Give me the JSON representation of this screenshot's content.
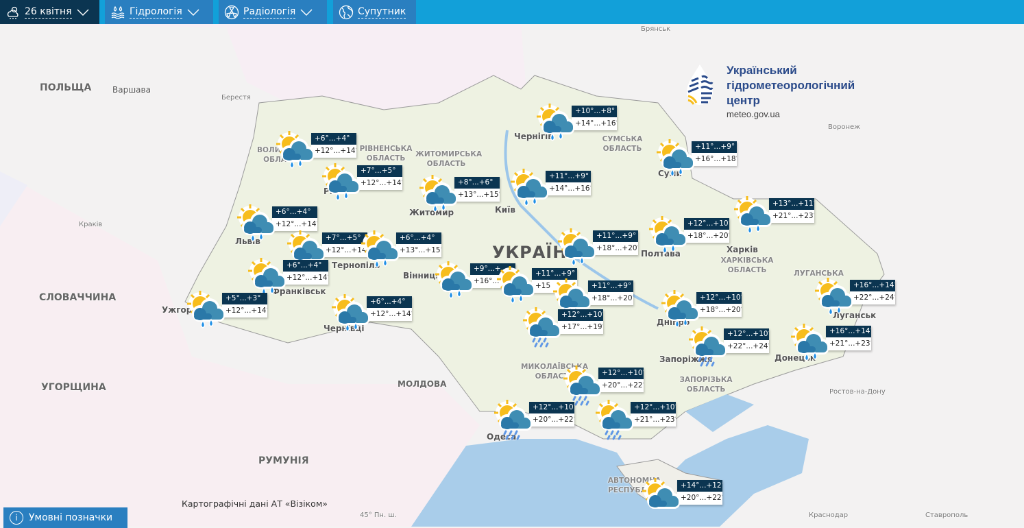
{
  "topbar": {
    "tabs": [
      {
        "label": "26 квітня",
        "icon": "weather-cloud-sun-icon",
        "dropdown": true,
        "active": true
      },
      {
        "label": "Гідрологія",
        "icon": "water-drops-icon",
        "dropdown": true
      },
      {
        "label": "Радіологія",
        "icon": "radiation-icon",
        "dropdown": true
      },
      {
        "label": "Супутник",
        "icon": "globe-icon",
        "dropdown": false
      }
    ]
  },
  "logo": {
    "line1": "Український",
    "line2": "гідрометеорологічний",
    "line3": "центр",
    "url": "meteo.gov.ua"
  },
  "colors": {
    "header": "#0b3551",
    "tab": "#2a7fc0",
    "bar": "#12a0d9",
    "sun": "#f7bd1d",
    "cloud": "#3a86ad",
    "rain": "#1e8fe6"
  },
  "labels": {
    "countries": [
      "ПОЛЬЩА",
      "СЛОВАЧЧИНА",
      "УГОРЩИНА",
      "РУМУНІЯ",
      "МОЛДОВА"
    ],
    "ukraine": "УКРАЇНА",
    "regions": [
      "СУМСЬКА ОБЛАСТЬ",
      "ХАРКІВСЬКА ОБЛАСТЬ",
      "МИКОЛАЇВСЬКА ОБЛАСТЬ",
      "ЗАПОРІЗЬКА ОБЛАСТЬ",
      "АВТОНОМНА РЕСПУБЛІКА",
      "ЛУГАНСЬКА",
      "ВОЛИНСЬКА ОБЛАСТЬ",
      "РІВНЕНСЬКА ОБЛАСТЬ",
      "ЖИТОМИРСЬКА ОБЛАСТЬ"
    ],
    "cities": [
      "Варшава",
      "Берестя",
      "Краків",
      "Львів",
      "Рівне",
      "Житомир",
      "Київ",
      "Чернігів",
      "Суми",
      "Полтава",
      "Вінниця",
      "Тернопіль",
      "Франківськ",
      "Чернівці",
      "Ужгород",
      "Дніпро",
      "Запоріжжя",
      "Луганськ",
      "Донецьк",
      "Одеса",
      "Харків",
      "Воронеж",
      "Брянськ",
      "Ростов-на-Дону",
      "Краснодар",
      "Ставрополь"
    ],
    "latitude": "45° Пн. ш."
  },
  "stations": [
    {
      "day": "+6°...+4°",
      "night": "+12°...+14°",
      "weather": "sun-cloud-rain"
    },
    {
      "day": "+7°...+5°",
      "night": "+12°...+14°",
      "weather": "sun-cloud-rain"
    },
    {
      "day": "+8°...+6°",
      "night": "+13°...+15°",
      "weather": "sun-cloud-rain"
    },
    {
      "day": "+11°...+9°",
      "night": "+14°...+16°",
      "weather": "sun-cloud-rain"
    },
    {
      "day": "+10°...+8°",
      "night": "+14°...+16°",
      "weather": "sun-cloud-rain"
    },
    {
      "day": "+11°...+9°",
      "night": "+16°...+18°",
      "weather": "sun-cloud-rain"
    },
    {
      "day": "+13°...+11°",
      "night": "+21°...+23°",
      "weather": "sun-cloud-rain"
    },
    {
      "day": "+12°...+10°",
      "night": "+18°...+20°",
      "weather": "sun-cloud-rain"
    },
    {
      "day": "+11°...+9°",
      "night": "+18°...+20°",
      "weather": "sun-cloud-rain"
    },
    {
      "day": "+6°...+4°",
      "night": "+12°...+14°",
      "weather": "sun-cloud-rain"
    },
    {
      "day": "+7°...+5°",
      "night": "+12°...+14°",
      "weather": "sun-cloud-rain"
    },
    {
      "day": "+6°...+4°",
      "night": "+13°...+15°",
      "weather": "sun-cloud-rain"
    },
    {
      "day": "+6°...+4°",
      "night": "+12°...+14°",
      "weather": "sun-cloud-rain"
    },
    {
      "day": "+5°...+3°",
      "night": "+12°...+14°",
      "weather": "sun-cloud-rain"
    },
    {
      "day": "+6°...+4°",
      "night": "+12°...+14°",
      "weather": "sun-cloud-rain"
    },
    {
      "day": "+9°...+",
      "night": "+16°...+",
      "weather": "sun-cloud-rain"
    },
    {
      "day": "+11°...+9°",
      "night": "+15",
      "weather": "sun-cloud-rain"
    },
    {
      "day": "+11°...+9°",
      "night": "+18°...+20°",
      "weather": "sun-cloud-heavy-rain"
    },
    {
      "day": "+12°...+10°",
      "night": "+18°...+20°",
      "weather": "sun-cloud-rain"
    },
    {
      "day": "+16°...+14°",
      "night": "+22°...+24°",
      "weather": "sun-cloud-rain"
    },
    {
      "day": "+16°...+14°",
      "night": "+21°...+23°",
      "weather": "sun-cloud-rain"
    },
    {
      "day": "+12°...+10°",
      "night": "+22°...+24°",
      "weather": "sun-cloud-heavy-rain"
    },
    {
      "day": "+12°...+10°",
      "night": "+17°...+19°",
      "weather": "sun-cloud-heavy-rain"
    },
    {
      "day": "+12°...+10°",
      "night": "+20°...+22°",
      "weather": "sun-cloud-heavy-rain"
    },
    {
      "day": "+12°...+10°",
      "night": "+20°...+22°",
      "weather": "sun-cloud-heavy-rain"
    },
    {
      "day": "+12°...+10°",
      "night": "+21°...+23°",
      "weather": "sun-cloud-heavy-rain"
    },
    {
      "day": "+14°...+12°",
      "night": "+20°...+22°",
      "weather": "sun-cloud"
    }
  ],
  "credit": "Картографічні дані АТ «Візіком»",
  "legend_button": "Умовні позначки"
}
